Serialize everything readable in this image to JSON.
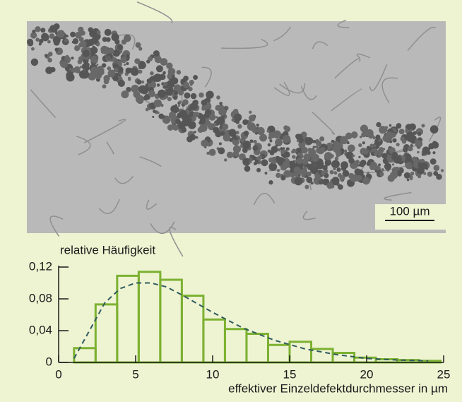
{
  "scale_bar": "100 µm",
  "chart_data": {
    "type": "histogram",
    "ylabel": "relative Häufigkeit",
    "xlabel": "effektiver Einzeldefektdurchmesser in µm",
    "bins": [
      1,
      2.4,
      3.8,
      5.2,
      6.6,
      8.0,
      9.4,
      10.8,
      12.2,
      13.6,
      15.0,
      16.4,
      17.8,
      19.2,
      20.6,
      22.0,
      23.4,
      24.8
    ],
    "counts": [
      0.018,
      0.073,
      0.109,
      0.114,
      0.104,
      0.084,
      0.054,
      0.042,
      0.036,
      0.022,
      0.026,
      0.017,
      0.012,
      0.006,
      0.004,
      0.003,
      0.002
    ],
    "color": "#7cb131",
    "fit": {
      "x": [
        1,
        2,
        3,
        4,
        5,
        6,
        7,
        8,
        10,
        12,
        14,
        16,
        18,
        20,
        22,
        24
      ],
      "values": [
        0.005,
        0.04,
        0.075,
        0.093,
        0.1,
        0.1,
        0.095,
        0.085,
        0.063,
        0.043,
        0.028,
        0.017,
        0.01,
        0.005,
        0.003,
        0.002
      ],
      "color": "#2f5b5d"
    },
    "xlim": [
      0,
      25
    ],
    "xticks": [
      0,
      5,
      10,
      15,
      20,
      25
    ],
    "ylim": [
      0,
      0.12
    ],
    "yticks": [
      0,
      {
        "value": 0.04,
        "label": "0,04"
      },
      {
        "value": 0.08,
        "label": "0,08"
      },
      {
        "value": 0.12,
        "label": "0,12"
      }
    ]
  }
}
